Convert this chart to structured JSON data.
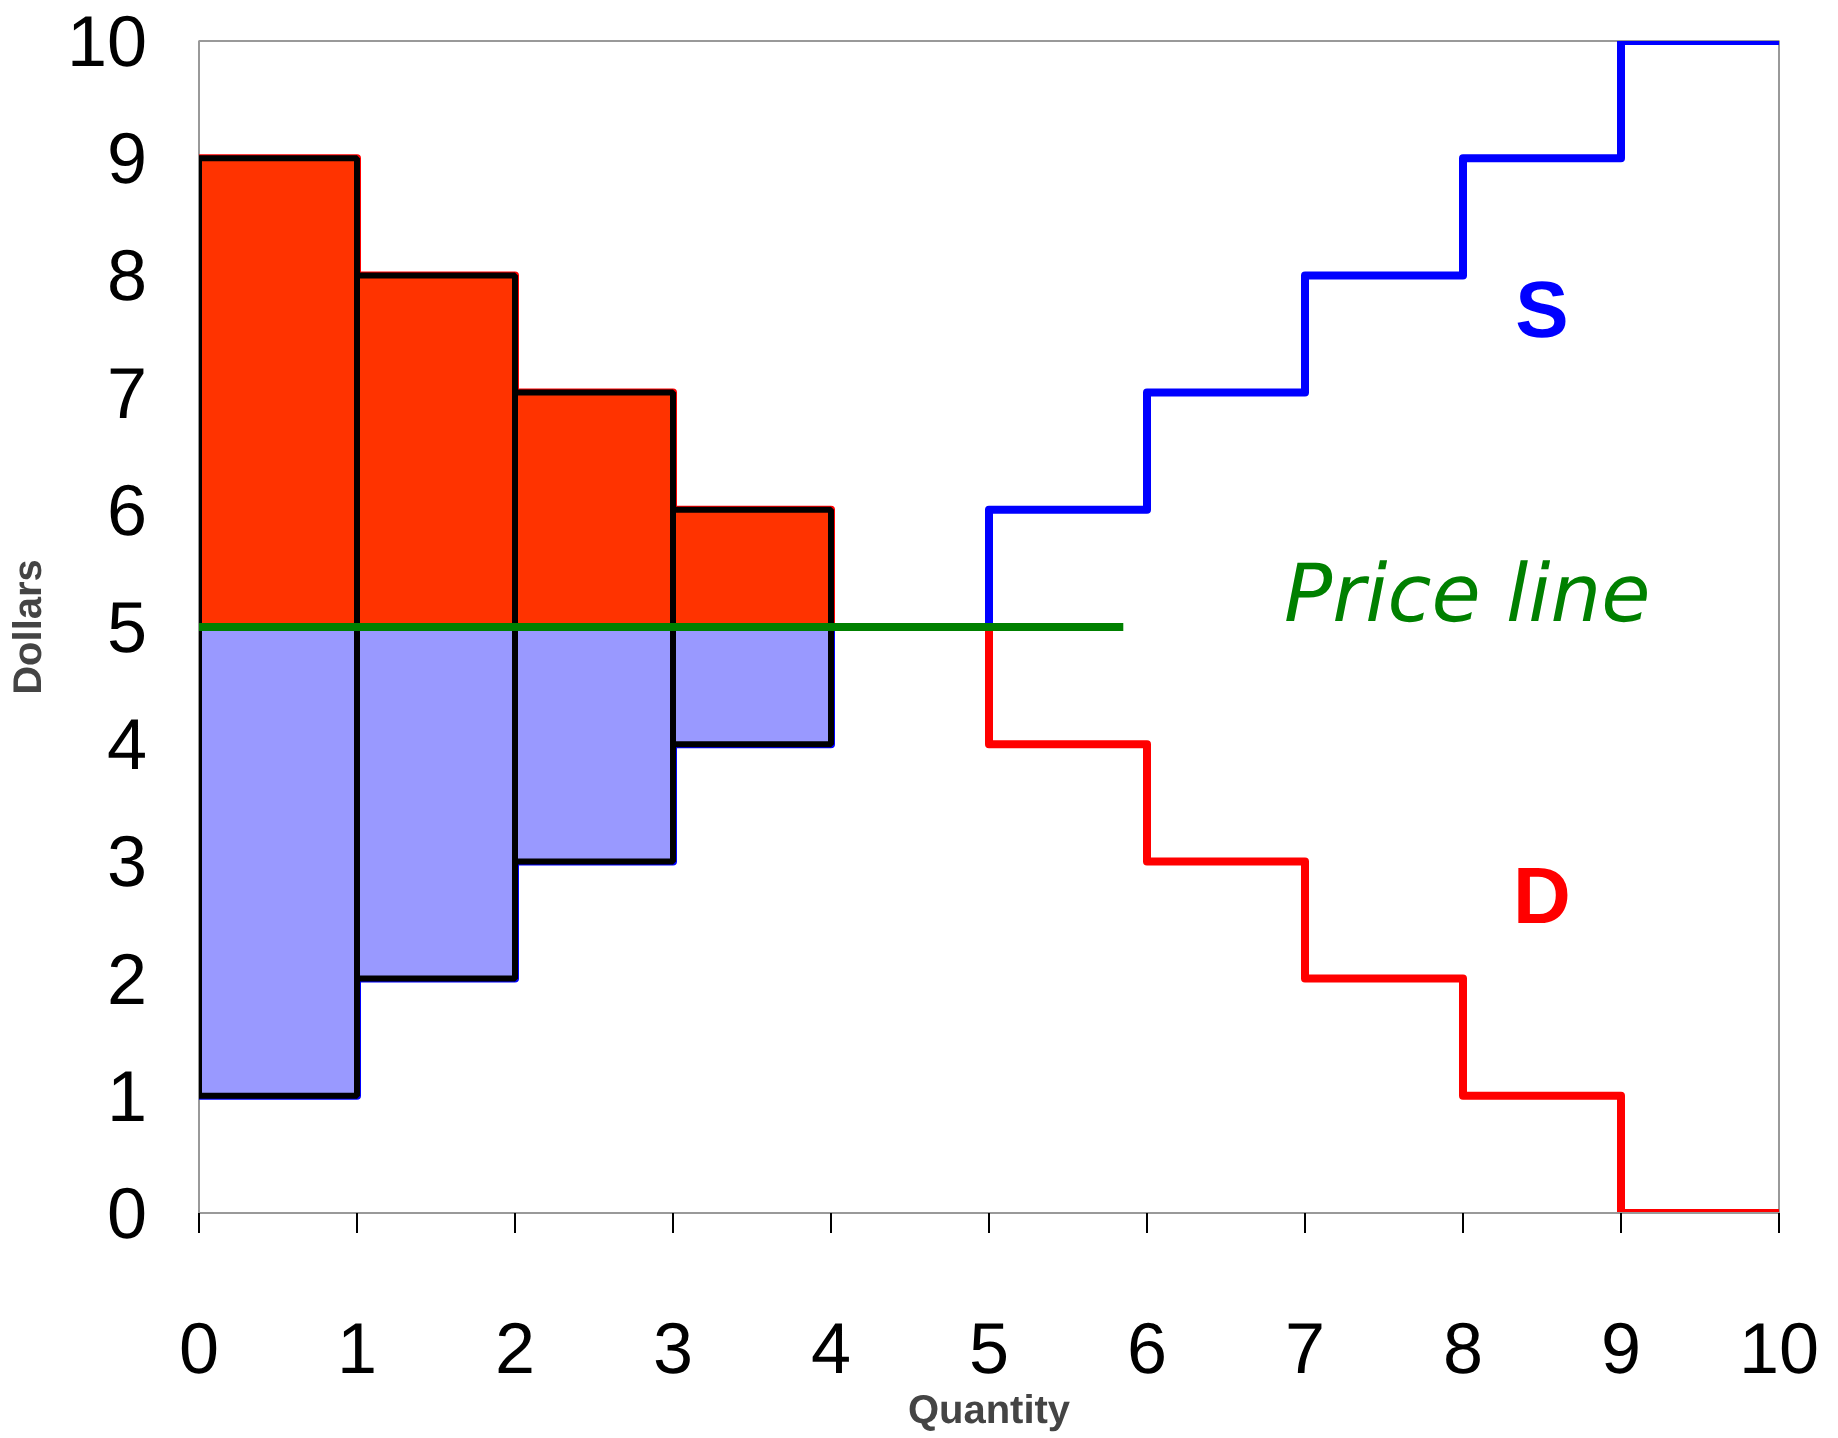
{
  "chart_data": {
    "type": "step",
    "xlabel": "Quantity",
    "ylabel": "Dollars",
    "xlim": [
      0,
      10
    ],
    "ylim": [
      0,
      10
    ],
    "xticks": [
      0,
      1,
      2,
      3,
      4,
      5,
      6,
      7,
      8,
      9,
      10
    ],
    "yticks": [
      0,
      1,
      2,
      3,
      4,
      5,
      6,
      7,
      8,
      9,
      10
    ],
    "grid": false,
    "series": [
      {
        "name": "D",
        "color": "#ff0000",
        "x": [
          0,
          1,
          2,
          3,
          4,
          5,
          6,
          7,
          8,
          9,
          10
        ],
        "values": [
          9,
          8,
          7,
          6,
          5,
          4,
          3,
          2,
          1,
          0,
          0
        ]
      },
      {
        "name": "S",
        "color": "#0000ff",
        "x": [
          0,
          1,
          2,
          3,
          4,
          5,
          6,
          7,
          8,
          9,
          10
        ],
        "values": [
          1,
          2,
          3,
          4,
          5,
          6,
          7,
          8,
          9,
          10,
          10
        ]
      },
      {
        "color": "#ff3300",
        "type": "bar",
        "x": [
          0.5,
          1.5,
          2.5,
          3.5
        ],
        "base": [
          5,
          5,
          5,
          5
        ],
        "values": [
          4,
          3,
          2,
          1
        ]
      },
      {
        "color": "#9999ff",
        "type": "bar",
        "x": [
          0.5,
          1.5,
          2.5,
          3.5
        ],
        "base": [
          1,
          2,
          3,
          4
        ],
        "values": [
          4,
          3,
          2,
          1
        ]
      },
      {
        "color": "#008000",
        "type": "line",
        "x": [
          0,
          5.85
        ],
        "values": [
          5,
          5
        ]
      }
    ],
    "annotations": [
      "Price line"
    ]
  }
}
